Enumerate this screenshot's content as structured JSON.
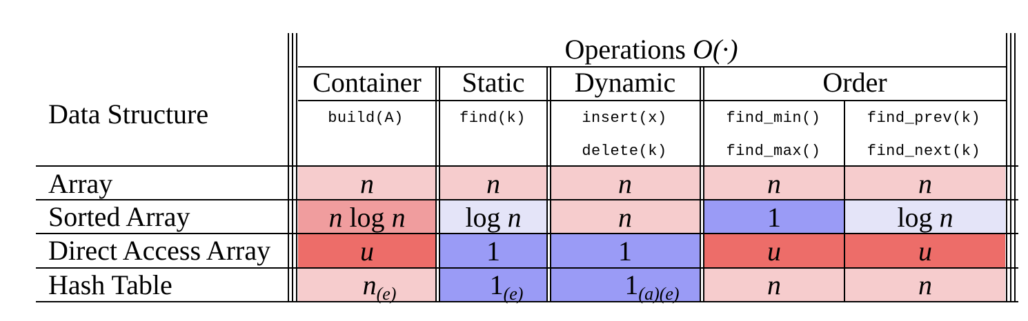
{
  "header": {
    "data_structure": "Data Structure",
    "operations_text": "Operations ",
    "operations_symbol": "O(·)",
    "groups": [
      "Container",
      "Static",
      "Dynamic",
      "Order"
    ],
    "ops": {
      "container": "build(A)",
      "static": "find(k)",
      "dynamic_1": "insert(x)",
      "dynamic_2": "delete(k)",
      "order_a1": "find_min()",
      "order_a2": "find_max()",
      "order_b1": "find_prev(k)",
      "order_b2": "find_next(k)"
    }
  },
  "rows": [
    {
      "name": "Array",
      "cells": [
        {
          "main": "n",
          "sub": "",
          "color": "#f6cccd"
        },
        {
          "main": "n",
          "sub": "",
          "color": "#f6cccd"
        },
        {
          "main": "n",
          "sub": "",
          "color": "#f6cccd"
        },
        {
          "main": "n",
          "sub": "",
          "color": "#f6cccd"
        },
        {
          "main": "n",
          "sub": "",
          "color": "#f6cccd"
        }
      ]
    },
    {
      "name": "Sorted Array",
      "cells": [
        {
          "main": "n log n",
          "sub": "",
          "color": "#f09d9e"
        },
        {
          "main": "log n",
          "sub": "",
          "color": "#e4e4f8"
        },
        {
          "main": "n",
          "sub": "",
          "color": "#f6cccd"
        },
        {
          "main": "1",
          "sub": "",
          "color": "#9a9bf6"
        },
        {
          "main": "log n",
          "sub": "",
          "color": "#e4e4f8"
        }
      ]
    },
    {
      "name": "Direct Access Array",
      "cells": [
        {
          "main": "u",
          "sub": "",
          "color": "#ed6d69"
        },
        {
          "main": "1",
          "sub": "",
          "color": "#9a9bf6"
        },
        {
          "main": "1",
          "sub": "",
          "color": "#9a9bf6"
        },
        {
          "main": "u",
          "sub": "",
          "color": "#ed6d69"
        },
        {
          "main": "u",
          "sub": "",
          "color": "#ed6d69"
        }
      ]
    },
    {
      "name": "Hash Table",
      "cells": [
        {
          "main": "n",
          "sub": "(e)",
          "color": "#f6cccd"
        },
        {
          "main": "1",
          "sub": "(e)",
          "color": "#9a9bf6"
        },
        {
          "main": "1",
          "sub": "(a)(e)",
          "color": "#9a9bf6"
        },
        {
          "main": "n",
          "sub": "",
          "color": "#f6cccd"
        },
        {
          "main": "n",
          "sub": "",
          "color": "#f6cccd"
        }
      ]
    }
  ]
}
